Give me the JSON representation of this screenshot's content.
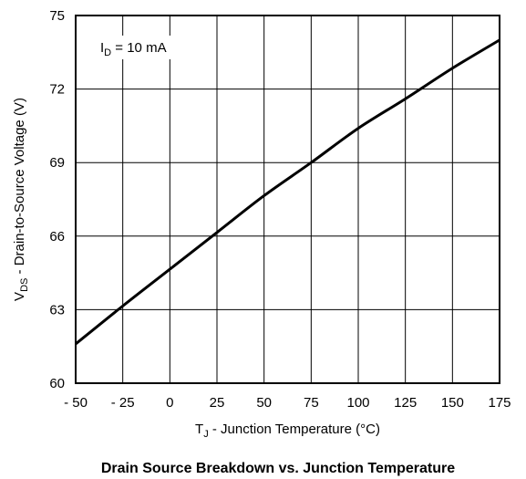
{
  "chart_data": {
    "type": "line",
    "title": "Drain Source Breakdown vs. Junction Temperature",
    "xlabel": {
      "main": "T",
      "sub": "J",
      "rest": " - Junction Temperature (°C)"
    },
    "ylabel": {
      "main": "V",
      "sub": "DS",
      "rest": " - Drain-to-Source Voltage (V)"
    },
    "annotation": {
      "main": "I",
      "sub": "D",
      "rest": " = 10 mA"
    },
    "xlim": [
      -50,
      175
    ],
    "ylim": [
      60,
      75
    ],
    "x_ticks": [
      -50,
      -25,
      0,
      25,
      50,
      75,
      100,
      125,
      150,
      175
    ],
    "x_tick_labels": [
      "- 50",
      "- 25",
      "0",
      "25",
      "50",
      "75",
      "100",
      "125",
      "150",
      "175"
    ],
    "y_ticks": [
      60,
      63,
      66,
      69,
      72,
      75
    ],
    "y_tick_labels": [
      "60",
      "63",
      "66",
      "69",
      "72",
      "75"
    ],
    "grid": true,
    "series": [
      {
        "x": [
          -50,
          -25,
          0,
          25,
          50,
          75,
          100,
          125,
          150,
          175
        ],
        "y": [
          61.6,
          63.15,
          64.65,
          66.15,
          67.65,
          69.0,
          70.4,
          71.6,
          72.85,
          74.0
        ]
      }
    ]
  }
}
